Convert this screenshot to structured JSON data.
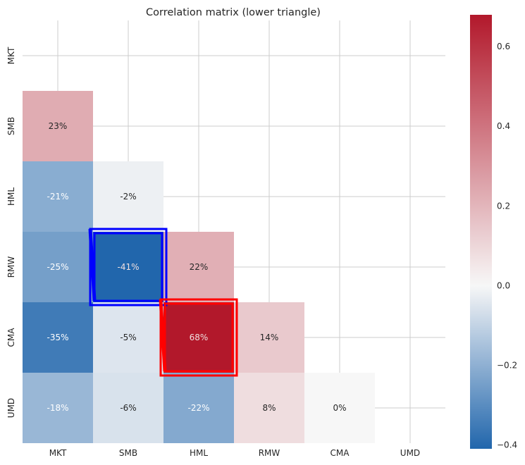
{
  "chart_data": {
    "type": "heatmap",
    "title": "Correlation matrix (lower triangle)",
    "rows": [
      "MKT",
      "SMB",
      "HML",
      "RMW",
      "CMA",
      "UMD"
    ],
    "cols": [
      "MKT",
      "SMB",
      "HML",
      "RMW",
      "CMA",
      "UMD"
    ],
    "matrix": [
      [
        null,
        null,
        null,
        null,
        null,
        null
      ],
      [
        0.23,
        null,
        null,
        null,
        null,
        null
      ],
      [
        -0.21,
        -0.02,
        null,
        null,
        null,
        null
      ],
      [
        -0.25,
        -0.41,
        0.22,
        null,
        null,
        null
      ],
      [
        -0.35,
        -0.05,
        0.68,
        0.14,
        null,
        null
      ],
      [
        -0.18,
        -0.06,
        -0.22,
        0.08,
        0.0,
        null
      ]
    ],
    "cell_labels": [
      [
        null,
        null,
        null,
        null,
        null,
        null
      ],
      [
        "23%",
        null,
        null,
        null,
        null,
        null
      ],
      [
        "-21%",
        "-2%",
        null,
        null,
        null,
        null
      ],
      [
        "-25%",
        "-41%",
        "22%",
        null,
        null,
        null
      ],
      [
        "-35%",
        "-5%",
        "68%",
        "14%",
        null,
        null
      ],
      [
        "-18%",
        "-6%",
        "-22%",
        "8%",
        "0%",
        null
      ]
    ],
    "colorbar": {
      "min": -0.41,
      "max": 0.68,
      "ticks": [
        -0.4,
        -0.2,
        0.0,
        0.2,
        0.4,
        0.6
      ],
      "tick_labels": [
        "−0.4",
        "−0.2",
        "0.0",
        "0.2",
        "0.4",
        "0.6"
      ],
      "colormap": [
        "#2166ac",
        "#f7f7f7",
        "#b2182b"
      ]
    },
    "highlights": [
      {
        "row": "RMW",
        "col": "SMB",
        "color": "#0000ff"
      },
      {
        "row": "CMA",
        "col": "HML",
        "color": "#ff0000"
      }
    ],
    "grid": true
  }
}
